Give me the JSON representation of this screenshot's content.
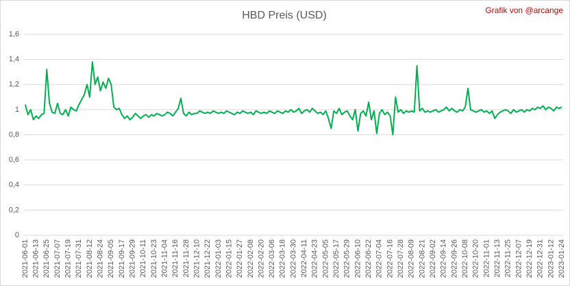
{
  "chart_data": {
    "type": "line",
    "title": "HBD Preis (USD)",
    "annotation": "Grafik von @arcange",
    "categories": [
      "2021-06-01",
      null,
      null,
      null,
      "2021-06-13",
      null,
      null,
      null,
      "2021-06-25",
      null,
      null,
      null,
      "2021-07-07",
      null,
      null,
      null,
      "2021-07-19",
      null,
      null,
      null,
      "2021-07-31",
      null,
      null,
      null,
      "2021-08-12",
      null,
      null,
      null,
      "2021-08-24",
      null,
      null,
      null,
      "2021-09-05",
      null,
      null,
      null,
      "2021-09-17",
      null,
      null,
      null,
      "2021-09-29",
      null,
      null,
      null,
      "2021-10-11",
      null,
      null,
      null,
      "2021-10-23",
      null,
      null,
      null,
      "2021-11-04",
      null,
      null,
      null,
      "2021-11-16",
      null,
      null,
      null,
      "2021-11-28",
      null,
      null,
      null,
      "2021-12-10",
      null,
      null,
      null,
      "2021-12-22",
      null,
      null,
      null,
      "2022-01-03",
      null,
      null,
      null,
      "2022-01-15",
      null,
      null,
      null,
      "2022-01-27",
      null,
      null,
      null,
      "2022-02-08",
      null,
      null,
      null,
      "2022-02-20",
      null,
      null,
      null,
      "2022-03-06",
      null,
      null,
      null,
      "2022-03-18",
      null,
      null,
      null,
      "2022-03-30",
      null,
      null,
      null,
      "2022-04-11",
      null,
      null,
      null,
      "2022-04-23",
      null,
      null,
      null,
      "2022-05-05",
      null,
      null,
      null,
      "2022-05-17",
      null,
      null,
      null,
      "2022-05-29",
      null,
      null,
      null,
      "2022-06-10",
      null,
      null,
      null,
      "2022-06-22",
      null,
      null,
      null,
      "2022-07-04",
      null,
      null,
      null,
      "2022-07-16",
      null,
      null,
      null,
      "2022-07-28",
      null,
      null,
      null,
      "2022-08-09",
      null,
      null,
      null,
      "2022-08-21",
      null,
      null,
      null,
      "2022-09-02",
      null,
      null,
      null,
      "2022-09-14",
      null,
      null,
      null,
      "2022-09-26",
      null,
      null,
      null,
      "2022-10-08",
      null,
      null,
      null,
      "2022-10-20",
      null,
      null,
      null,
      "2022-11-01",
      null,
      null,
      null,
      "2022-11-13",
      null,
      null,
      null,
      "2022-11-25",
      null,
      null,
      null,
      "2022-12-07",
      null,
      null,
      null,
      "2022-12-19",
      null,
      null,
      null,
      "2022-12-31",
      null,
      null,
      null,
      "2023-01-12",
      null,
      null,
      null,
      "2023-01-24"
    ],
    "series": [
      {
        "color": "#00b050",
        "values": [
          1.04,
          0.96,
          1.0,
          0.92,
          0.95,
          0.93,
          0.96,
          0.97,
          1.32,
          1.05,
          0.98,
          0.97,
          1.05,
          0.97,
          0.96,
          1.0,
          0.95,
          1.02,
          1.0,
          0.99,
          1.04,
          1.08,
          1.12,
          1.2,
          1.1,
          1.38,
          1.2,
          1.26,
          1.15,
          1.22,
          1.17,
          1.25,
          1.2,
          1.02,
          1.0,
          1.01,
          0.96,
          0.93,
          0.95,
          0.92,
          0.94,
          0.97,
          0.95,
          0.93,
          0.95,
          0.96,
          0.94,
          0.96,
          0.95,
          0.97,
          0.96,
          0.95,
          0.96,
          0.98,
          0.97,
          0.95,
          0.98,
          1.01,
          1.09,
          0.97,
          0.95,
          0.98,
          0.96,
          0.97,
          0.97,
          0.99,
          0.98,
          0.97,
          0.98,
          0.97,
          0.99,
          0.98,
          0.97,
          0.98,
          0.97,
          0.99,
          0.98,
          0.97,
          0.96,
          0.98,
          0.97,
          0.99,
          0.98,
          0.97,
          0.98,
          0.96,
          0.99,
          0.98,
          0.97,
          0.98,
          0.97,
          0.99,
          0.98,
          0.97,
          0.99,
          0.98,
          0.97,
          0.99,
          0.98,
          1.0,
          0.98,
          0.99,
          1.01,
          0.97,
          0.99,
          1.0,
          0.98,
          1.01,
          0.99,
          0.97,
          0.98,
          0.96,
          0.99,
          0.93,
          0.85,
          0.99,
          0.97,
          1.01,
          0.96,
          0.98,
          0.99,
          0.95,
          0.92,
          1.0,
          0.83,
          0.97,
          0.99,
          0.95,
          1.06,
          0.92,
          0.99,
          0.81,
          0.97,
          1.0,
          0.96,
          0.98,
          0.95,
          0.8,
          1.1,
          0.98,
          1.0,
          0.97,
          0.99,
          0.98,
          0.99,
          0.98,
          1.35,
          0.99,
          1.01,
          0.98,
          0.99,
          0.98,
          0.99,
          1.0,
          0.98,
          0.99,
          1.0,
          1.02,
          0.99,
          1.01,
          0.99,
          0.98,
          1.0,
          0.99,
          1.02,
          1.17,
          1.0,
          0.99,
          0.98,
          0.99,
          1.0,
          0.98,
          0.99,
          0.97,
          0.99,
          0.93,
          0.96,
          0.98,
          0.99,
          1.0,
          0.99,
          0.97,
          1.0,
          0.98,
          0.99,
          1.0,
          0.98,
          1.0,
          0.99,
          1.01,
          1.0,
          1.02,
          1.01,
          1.03,
          1.0,
          1.02,
          1.01,
          0.99,
          1.02,
          1.01,
          1.02
        ]
      }
    ],
    "ylim": [
      0,
      1.6
    ],
    "yticks": [
      0,
      {
        "value": 0.2,
        "label": "0,2"
      },
      {
        "value": 0.4,
        "label": "0,4"
      },
      {
        "value": 0.6,
        "label": "0,6"
      },
      {
        "value": 0.8,
        "label": "0,8"
      },
      1,
      {
        "value": 1.2,
        "label": "1,2"
      },
      {
        "value": 1.4,
        "label": "1,4"
      },
      {
        "value": 1.6,
        "label": "1,6"
      }
    ],
    "grid": true
  }
}
